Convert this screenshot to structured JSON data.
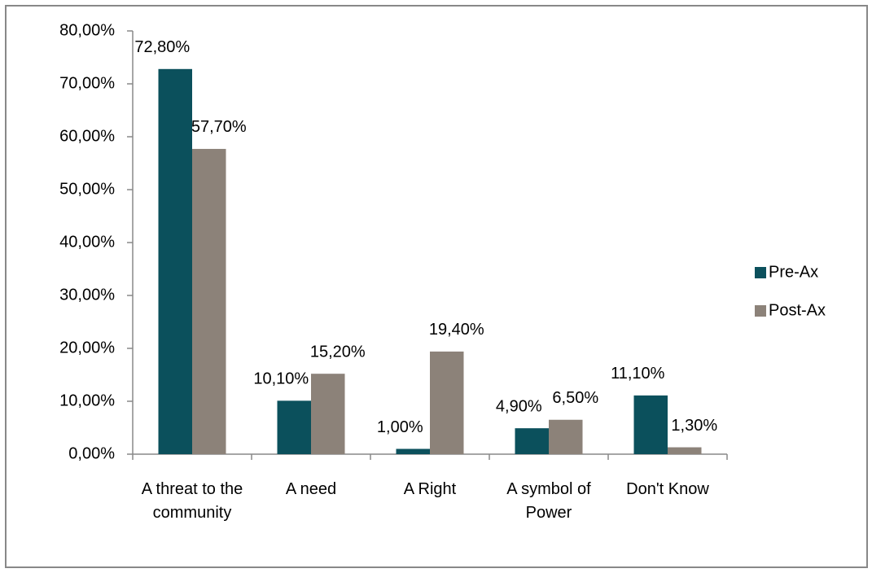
{
  "chart_data": {
    "type": "bar",
    "categories": [
      "A threat to the community",
      "A need",
      "A Right",
      "A symbol of Power",
      "Don't Know"
    ],
    "series": [
      {
        "name": "Pre-Ax",
        "color": "#0b505c",
        "values": [
          72.8,
          10.1,
          1.0,
          4.9,
          11.1
        ],
        "value_labels": [
          "72,80%",
          "10,10%",
          "1,00%",
          "4,90%",
          "11,10%"
        ]
      },
      {
        "name": "Post-Ax",
        "color": "#8c8279",
        "values": [
          57.7,
          15.2,
          19.4,
          6.5,
          1.3
        ],
        "value_labels": [
          "57,70%",
          "15,20%",
          "19,40%",
          "6,50%",
          "1,30%"
        ]
      }
    ],
    "ylim": [
      0,
      80
    ],
    "yticks": [
      {
        "value": 0,
        "label": "0,00%"
      },
      {
        "value": 10,
        "label": "10,00%"
      },
      {
        "value": 20,
        "label": "20,00%"
      },
      {
        "value": 30,
        "label": "30,00%"
      },
      {
        "value": 40,
        "label": "40,00%"
      },
      {
        "value": 50,
        "label": "50,00%"
      },
      {
        "value": 60,
        "label": "60,00%"
      },
      {
        "value": 70,
        "label": "70,00%"
      },
      {
        "value": 80,
        "label": "80,00%"
      }
    ],
    "legend": "right",
    "grid": false
  }
}
